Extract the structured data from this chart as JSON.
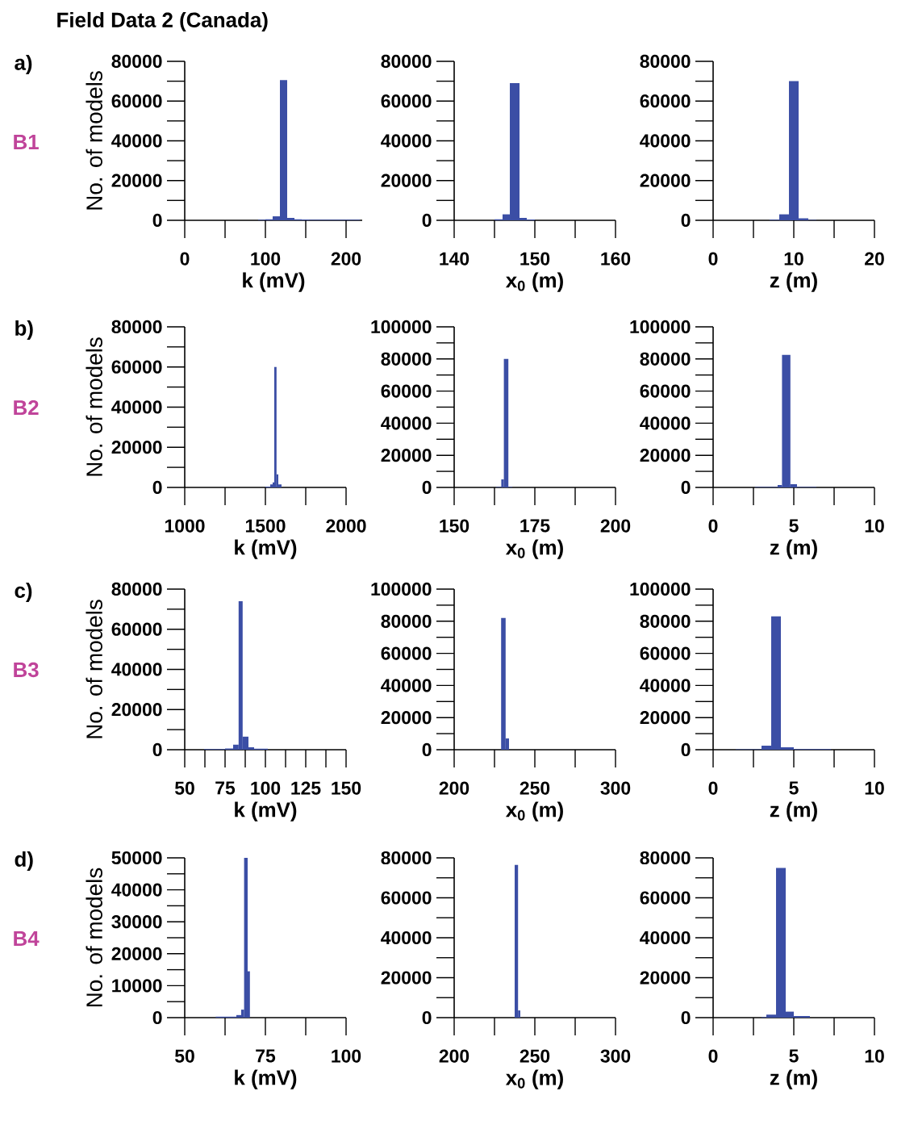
{
  "chart_data": [
    {
      "type": "histogram",
      "title": "Field Data 2 (Canada)",
      "ylabel": "No. of models",
      "xlabel": "k (mV)",
      "annotations": [
        "a)",
        "B1"
      ],
      "color": "#3b4ea5",
      "bins": [
        91,
        100,
        109,
        118,
        127,
        136,
        145,
        154,
        163,
        172,
        181,
        190,
        199,
        208,
        217
      ],
      "values": [
        300,
        500,
        2000,
        70500,
        1200,
        500,
        400,
        300,
        300,
        300,
        300,
        300,
        300,
        300
      ],
      "xlim": [
        0,
        220
      ],
      "xticks": [
        0,
        100,
        200
      ],
      "ylim": [
        0,
        80000
      ],
      "yticks": [
        0,
        20000,
        40000,
        60000,
        80000
      ]
    },
    {
      "type": "histogram",
      "xlabel": "x$_{0}$ (m)",
      "color": "#3b4ea5",
      "bins": [
        145,
        146,
        146.9,
        148.1,
        149,
        150
      ],
      "values": [
        500,
        3000,
        69000,
        1200,
        400
      ],
      "xlim": [
        140,
        160
      ],
      "xticks": [
        140,
        150,
        160
      ],
      "ylim": [
        0,
        80000
      ],
      "yticks": [
        0,
        20000,
        40000,
        60000,
        80000
      ]
    },
    {
      "type": "histogram",
      "xlabel": "z (m)",
      "color": "#3b4ea5",
      "bins": [
        7,
        8.2,
        9.4,
        10.6,
        11.8,
        12.8
      ],
      "values": [
        300,
        3000,
        70000,
        1000,
        200
      ],
      "xlim": [
        0,
        20
      ],
      "xticks": [
        0,
        10,
        20
      ],
      "ylim": [
        0,
        80000
      ],
      "yticks": [
        0,
        20000,
        40000,
        60000,
        80000
      ]
    },
    {
      "type": "histogram",
      "ylabel": "No. of models",
      "xlabel": "k (mV)",
      "annotations": [
        "b)",
        "B2"
      ],
      "color": "#3b4ea5",
      "bins": [
        1500,
        1530,
        1545,
        1555,
        1569,
        1580,
        1600
      ],
      "values": [
        400,
        1500,
        2500,
        60000,
        6500,
        1500
      ],
      "xlim": [
        1000,
        2000
      ],
      "xticks": [
        1000,
        1500,
        2000
      ],
      "ylim": [
        0,
        80000
      ],
      "yticks": [
        0,
        20000,
        40000,
        60000,
        80000
      ]
    },
    {
      "type": "histogram",
      "xlabel": "x$_{0}$ (m)",
      "color": "#3b4ea5",
      "bins": [
        163,
        164.6,
        165.4,
        166.8,
        168
      ],
      "values": [
        300,
        5000,
        80000,
        300
      ],
      "xlim": [
        150,
        200
      ],
      "xticks": [
        150,
        175,
        200
      ],
      "ylim": [
        0,
        100000
      ],
      "yticks": [
        0,
        20000,
        40000,
        60000,
        80000,
        100000
      ]
    },
    {
      "type": "histogram",
      "xlabel": "z (m)",
      "color": "#3b4ea5",
      "bins": [
        2.6,
        4.0,
        4.27,
        4.79,
        5.2,
        6.4
      ],
      "values": [
        300,
        1500,
        82500,
        2000,
        300
      ],
      "xlim": [
        0,
        10
      ],
      "xticks": [
        0,
        5,
        10
      ],
      "ylim": [
        0,
        100000
      ],
      "yticks": [
        0,
        20000,
        40000,
        60000,
        80000,
        100000
      ]
    },
    {
      "type": "histogram",
      "ylabel": "No. of models",
      "xlabel": "k (mV)",
      "annotations": [
        "c)",
        "B3"
      ],
      "color": "#3b4ea5",
      "bins": [
        62,
        75,
        80,
        83.4,
        85.9,
        89.5,
        93,
        101.5
      ],
      "values": [
        300,
        600,
        2500,
        74000,
        6500,
        1200,
        500
      ],
      "xlim": [
        50,
        150
      ],
      "xticks": [
        50,
        75,
        100,
        125,
        150
      ],
      "ylim": [
        0,
        80000
      ],
      "yticks": [
        0,
        20000,
        40000,
        60000,
        80000
      ]
    },
    {
      "type": "histogram",
      "xlabel": "x$_{0}$ (m)",
      "color": "#3b4ea5",
      "bins": [
        229.1,
        231.9,
        234
      ],
      "values": [
        82000,
        7000
      ],
      "xlim": [
        200,
        300
      ],
      "xticks": [
        200,
        250,
        300
      ],
      "ylim": [
        0,
        100000
      ],
      "yticks": [
        0,
        20000,
        40000,
        60000,
        80000,
        100000
      ]
    },
    {
      "type": "histogram",
      "xlabel": "z (m)",
      "color": "#3b4ea5",
      "bins": [
        1.4,
        3.0,
        3.6,
        4.2,
        5.0,
        7.3
      ],
      "values": [
        300,
        2500,
        83000,
        1500,
        400
      ],
      "xlim": [
        0,
        10
      ],
      "xticks": [
        0,
        5,
        10
      ],
      "ylim": [
        0,
        100000
      ],
      "yticks": [
        0,
        20000,
        40000,
        60000,
        80000,
        100000
      ]
    },
    {
      "type": "histogram",
      "ylabel": "No. of models",
      "xlabel": "k (mV)",
      "annotations": [
        "d)",
        "B4"
      ],
      "color": "#3b4ea5",
      "bins": [
        59.6,
        66,
        67.5,
        68.4,
        69.5,
        70.2
      ],
      "values": [
        300,
        800,
        2500,
        50000,
        14500
      ],
      "xlim": [
        50,
        100
      ],
      "xticks": [
        50,
        75,
        100
      ],
      "ylim": [
        0,
        50000
      ],
      "yticks": [
        0,
        10000,
        20000,
        30000,
        40000,
        50000
      ]
    },
    {
      "type": "histogram",
      "xlabel": "x$_{0}$ (m)",
      "color": "#3b4ea5",
      "bins": [
        237.5,
        239.6,
        241
      ],
      "values": [
        76500,
        3600
      ],
      "xlim": [
        200,
        300
      ],
      "xticks": [
        200,
        250,
        300
      ],
      "ylim": [
        0,
        80000
      ],
      "yticks": [
        0,
        20000,
        40000,
        60000,
        80000
      ]
    },
    {
      "type": "histogram",
      "xlabel": "z (m)",
      "color": "#3b4ea5",
      "bins": [
        3.0,
        3.3,
        3.9,
        4.5,
        5.0,
        6.0
      ],
      "values": [
        300,
        1500,
        75000,
        3000,
        800
      ],
      "xlim": [
        0,
        10
      ],
      "xticks": [
        0,
        5,
        10
      ],
      "ylim": [
        0,
        80000
      ],
      "yticks": [
        0,
        20000,
        40000,
        60000,
        80000
      ]
    }
  ]
}
